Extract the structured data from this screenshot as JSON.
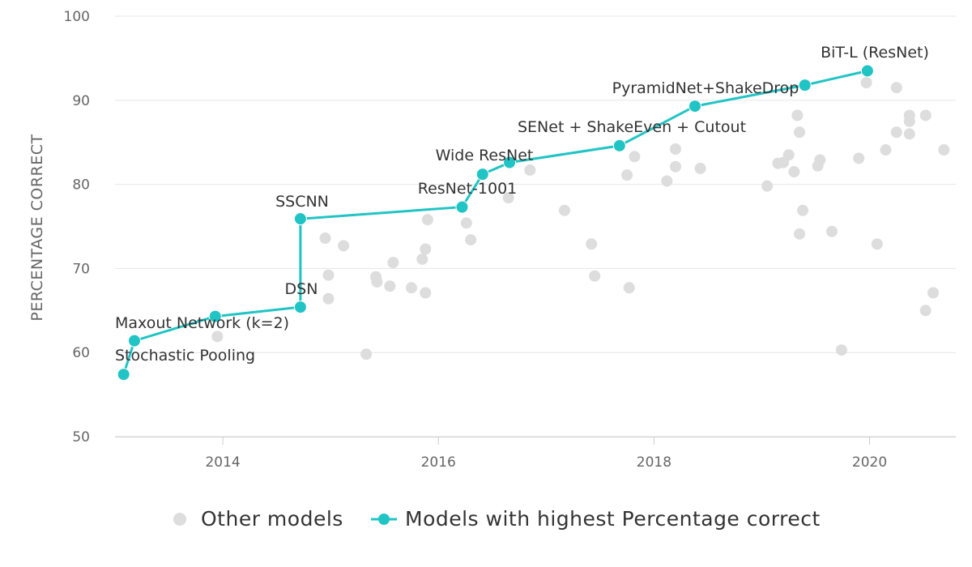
{
  "chart_data": {
    "type": "scatter",
    "ylabel": "PERCENTAGE CORRECT",
    "xlabel": "",
    "xlim": [
      2013.0,
      2020.8
    ],
    "ylim": [
      50,
      100
    ],
    "x_ticks": [
      2014,
      2016,
      2018,
      2020
    ],
    "y_ticks": [
      50,
      60,
      70,
      80,
      90,
      100
    ],
    "grid": "horizontal",
    "legend": "bottom-center",
    "colors": {
      "other": "#dddddd",
      "sota": "#21c4c4",
      "grid": "#e6e6e6",
      "text": "#333333",
      "axis": "#666666"
    },
    "series": [
      {
        "name": "Other models",
        "style": "markers",
        "points": [
          [
            2013.95,
            61.9
          ],
          [
            2014.95,
            73.6
          ],
          [
            2014.98,
            69.2
          ],
          [
            2014.98,
            66.4
          ],
          [
            2015.12,
            72.7
          ],
          [
            2015.33,
            59.8
          ],
          [
            2015.42,
            69.0
          ],
          [
            2015.43,
            68.4
          ],
          [
            2015.55,
            67.9
          ],
          [
            2015.58,
            70.7
          ],
          [
            2015.75,
            67.7
          ],
          [
            2015.85,
            71.1
          ],
          [
            2015.88,
            67.1
          ],
          [
            2015.88,
            72.3
          ],
          [
            2015.9,
            75.8
          ],
          [
            2016.26,
            75.4
          ],
          [
            2016.3,
            73.4
          ],
          [
            2016.65,
            78.4
          ],
          [
            2016.85,
            81.7
          ],
          [
            2017.17,
            76.9
          ],
          [
            2017.42,
            72.9
          ],
          [
            2017.45,
            69.1
          ],
          [
            2017.75,
            81.1
          ],
          [
            2017.77,
            67.7
          ],
          [
            2017.82,
            83.3
          ],
          [
            2018.12,
            80.4
          ],
          [
            2018.2,
            84.2
          ],
          [
            2018.2,
            82.1
          ],
          [
            2018.43,
            81.9
          ],
          [
            2019.05,
            79.8
          ],
          [
            2019.15,
            82.5
          ],
          [
            2019.2,
            82.6
          ],
          [
            2019.25,
            83.5
          ],
          [
            2019.3,
            81.5
          ],
          [
            2019.33,
            88.2
          ],
          [
            2019.35,
            86.2
          ],
          [
            2019.35,
            74.1
          ],
          [
            2019.38,
            76.9
          ],
          [
            2019.52,
            82.2
          ],
          [
            2019.54,
            82.9
          ],
          [
            2019.65,
            74.4
          ],
          [
            2019.74,
            60.3
          ],
          [
            2019.9,
            83.1
          ],
          [
            2019.97,
            92.1
          ],
          [
            2020.07,
            72.9
          ],
          [
            2020.15,
            84.1
          ],
          [
            2020.25,
            86.2
          ],
          [
            2020.25,
            91.5
          ],
          [
            2020.37,
            88.2
          ],
          [
            2020.37,
            87.5
          ],
          [
            2020.37,
            86.0
          ],
          [
            2020.52,
            65.0
          ],
          [
            2020.52,
            88.2
          ],
          [
            2020.59,
            67.1
          ],
          [
            2020.69,
            84.1
          ]
        ]
      },
      {
        "name": "Models with highest Percentage correct",
        "style": "step-line",
        "points": [
          {
            "x": 2013.08,
            "y": 57.4,
            "label": "Stochastic Pooling"
          },
          {
            "x": 2013.18,
            "y": 61.4,
            "label": "Maxout Network (k=2)"
          },
          {
            "x": 2013.93,
            "y": 64.3,
            "label": ""
          },
          {
            "x": 2014.72,
            "y": 65.4,
            "label": "DSN"
          },
          {
            "x": 2014.72,
            "y": 75.9,
            "label": "SSCNN"
          },
          {
            "x": 2016.22,
            "y": 77.3,
            "label": "ResNet-1001"
          },
          {
            "x": 2016.41,
            "y": 81.2,
            "label": "Wide ResNet"
          },
          {
            "x": 2016.66,
            "y": 82.6,
            "label": ""
          },
          {
            "x": 2017.68,
            "y": 84.6,
            "label": "SENet + ShakeEven + Cutout"
          },
          {
            "x": 2018.38,
            "y": 89.3,
            "label": "PyramidNet+ShakeDrop"
          },
          {
            "x": 2019.4,
            "y": 91.8,
            "label": ""
          },
          {
            "x": 2019.98,
            "y": 93.5,
            "label": "BiT-L (ResNet)"
          }
        ]
      }
    ]
  }
}
